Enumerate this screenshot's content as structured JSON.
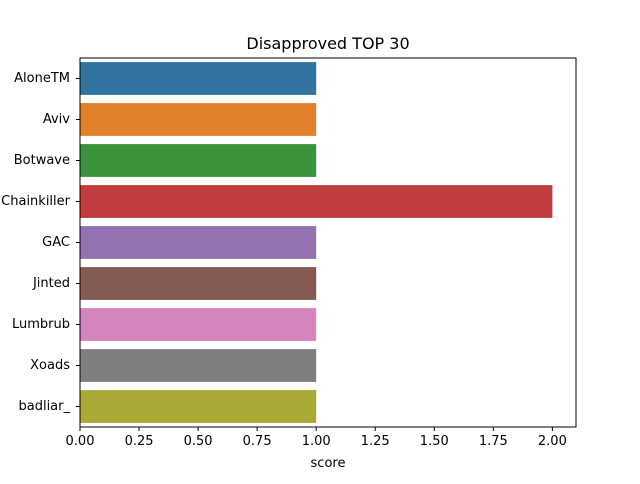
{
  "chart_data": {
    "type": "bar",
    "orientation": "horizontal",
    "title": "Disapproved TOP 30",
    "xlabel": "score",
    "ylabel": "",
    "categories": [
      "AloneTM",
      "Aviv",
      "Botwave",
      "Chainkiller",
      "GAC",
      "Jinted",
      "Lumbrub",
      "Xoads",
      "badliar_"
    ],
    "values": [
      1,
      1,
      1,
      2,
      1,
      1,
      1,
      1,
      1
    ],
    "xlim": [
      0,
      2.1
    ],
    "xticks": [
      "0.00",
      "0.25",
      "0.50",
      "0.75",
      "1.00",
      "1.25",
      "1.50",
      "1.75",
      "2.00"
    ],
    "colors": [
      "#3274a1",
      "#e1812c",
      "#3a923a",
      "#c03d3e",
      "#9372b2",
      "#845b53",
      "#d684bd",
      "#7f7f7f",
      "#a9aa35"
    ],
    "grid": false,
    "legend": "none"
  }
}
